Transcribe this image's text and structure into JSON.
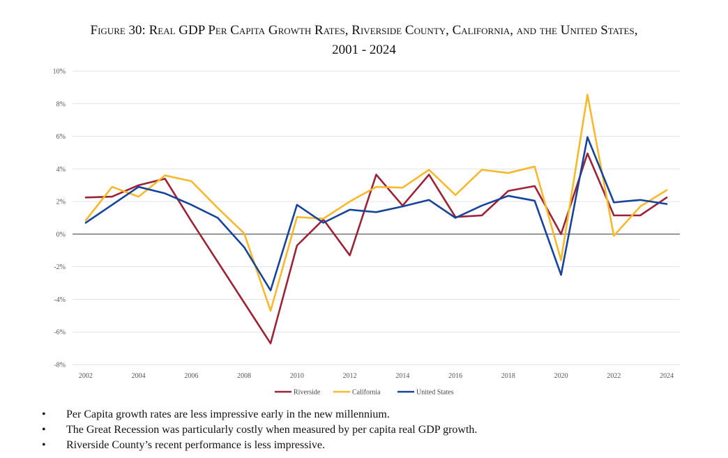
{
  "title": {
    "line1": "Figure 30: Real GDP Per Capita Growth Rates, Riverside County, California, and the United States,",
    "line2": "2001 - 2024"
  },
  "chart_data": {
    "type": "line",
    "title": "Figure 30: Real GDP Per Capita Growth Rates, Riverside County, California, and the United States, 2001 - 2024",
    "x": [
      2002,
      2003,
      2004,
      2005,
      2006,
      2007,
      2008,
      2009,
      2010,
      2011,
      2012,
      2013,
      2014,
      2015,
      2016,
      2017,
      2018,
      2019,
      2020,
      2021,
      2022,
      2023,
      2024
    ],
    "x_ticks": [
      "2002",
      "2004",
      "2006",
      "2008",
      "2010",
      "2012",
      "2014",
      "2016",
      "2018",
      "2020",
      "2022",
      "2024"
    ],
    "y_ticks": [
      "10%",
      "8%",
      "6%",
      "4%",
      "2%",
      "0%",
      "-2%",
      "-4%",
      "-6%",
      "-8%"
    ],
    "ylim": [
      -8,
      10
    ],
    "grid": true,
    "legend_position": "bottom",
    "series": [
      {
        "name": "Riverside",
        "color": "#9b2335",
        "values": [
          2.25,
          2.3,
          3.0,
          3.4,
          0.8,
          -1.7,
          -4.2,
          -6.7,
          -0.7,
          0.9,
          -1.3,
          3.65,
          1.75,
          3.65,
          1.05,
          1.15,
          2.65,
          2.95,
          0.0,
          4.95,
          1.15,
          1.15,
          2.25
        ]
      },
      {
        "name": "California",
        "color": "#f7b82b",
        "values": [
          0.85,
          2.9,
          2.3,
          3.6,
          3.25,
          1.6,
          0.05,
          -4.7,
          1.05,
          0.95,
          2.0,
          2.9,
          2.85,
          3.95,
          2.4,
          3.95,
          3.75,
          4.15,
          -1.6,
          8.55,
          -0.1,
          1.7,
          2.7
        ]
      },
      {
        "name": "United States",
        "color": "#17449b",
        "values": [
          0.7,
          1.8,
          2.9,
          2.5,
          1.8,
          1.0,
          -0.8,
          -3.45,
          1.8,
          0.7,
          1.5,
          1.35,
          1.7,
          2.1,
          1.0,
          1.75,
          2.35,
          2.05,
          -2.5,
          5.95,
          1.95,
          2.1,
          1.85
        ]
      }
    ]
  },
  "bullets": [
    "Per Capita growth rates are less impressive early in the new millennium.",
    "The Great Recession was particularly costly when measured by per capita real GDP growth.",
    "Riverside County’s recent performance is less impressive."
  ],
  "bullet_glyph": "•"
}
